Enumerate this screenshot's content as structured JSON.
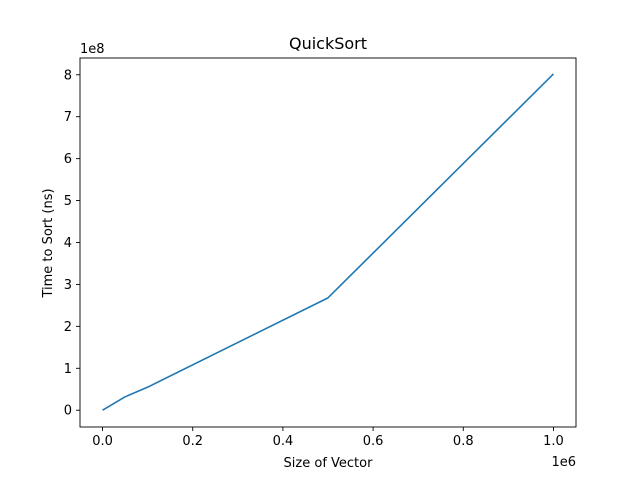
{
  "chart_data": {
    "type": "line",
    "title": "QuickSort",
    "xlabel": "Size of Vector",
    "ylabel": "Time to Sort (ns)",
    "x_offset_label": "1e6",
    "y_offset_label": "1e8",
    "x_ticks": [
      0,
      0.2,
      0.4,
      0.6,
      0.8,
      1.0
    ],
    "x_tick_labels": [
      "0.0",
      "0.2",
      "0.4",
      "0.6",
      "0.8",
      "1.0"
    ],
    "y_ticks": [
      0,
      1,
      2,
      3,
      4,
      5,
      6,
      7,
      8
    ],
    "y_tick_labels": [
      "0",
      "1",
      "2",
      "3",
      "4",
      "5",
      "6",
      "7",
      "8"
    ],
    "xlim": [
      -0.05,
      1.05
    ],
    "ylim": [
      -0.4,
      8.4
    ],
    "grid": false,
    "series": [
      {
        "color": "#1f77b4",
        "x": [
          0,
          0.05,
          0.1,
          0.5,
          1.0
        ],
        "y": [
          0,
          0.32,
          0.55,
          2.68,
          8.02
        ]
      }
    ]
  }
}
